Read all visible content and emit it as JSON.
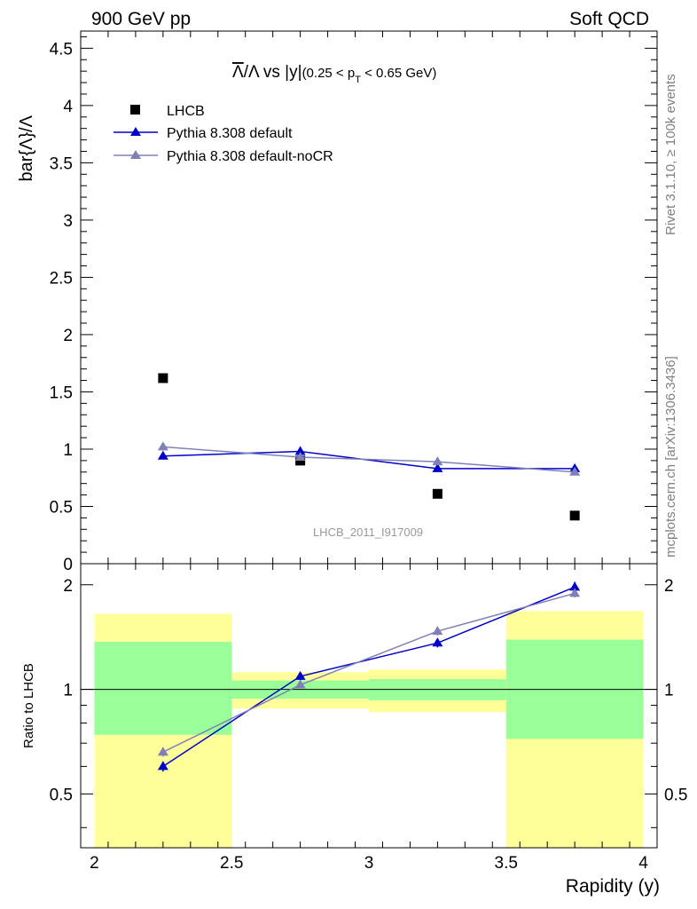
{
  "header": {
    "left": "900 GeV pp",
    "right": "Soft QCD"
  },
  "side_labels": {
    "rivet": "Rivet 3.1.10, ≥ 100k events",
    "mcplots": "mcplots.cern.ch [arXiv:1306.3436]"
  },
  "analysis_id": "LHCB_2011_I917009",
  "colors": {
    "data": "#000000",
    "pythia_default": "#0000cc",
    "pythia_nocr": "#8080b8",
    "band_inner": "#99ff99",
    "band_outer": "#ffff99"
  },
  "chart_data": [
    {
      "type": "scatter",
      "title": {
        "lambda_bar": "Λ",
        "middle": "/Λ vs |y|",
        "cut_open": "(0.25 < p",
        "cut_sub": "T",
        "cut_close": " < 0.65 GeV)"
      },
      "ylabel": "bar{Λ}/Λ",
      "ylim": [
        0,
        4.65
      ],
      "xlim": [
        1.95,
        4.05
      ],
      "yticks": [
        "0",
        "0.5",
        "1",
        "1.5",
        "2",
        "2.5",
        "3",
        "3.5",
        "4",
        "4.5"
      ],
      "legend_position": "top-left",
      "series": [
        {
          "name": "LHCB",
          "marker": "square",
          "x": [
            2.25,
            2.75,
            3.25,
            3.75
          ],
          "y": [
            1.62,
            0.9,
            0.61,
            0.42
          ],
          "err": [
            0.02,
            0.02,
            0.02,
            0.02
          ]
        },
        {
          "name": "Pythia 8.308 default",
          "marker": "triangle",
          "line": true,
          "x": [
            2.25,
            2.75,
            3.25,
            3.75
          ],
          "y": [
            0.94,
            0.98,
            0.83,
            0.83
          ],
          "err": [
            0.02,
            0.04,
            0.02,
            0.03
          ]
        },
        {
          "name": "Pythia 8.308 default-noCR",
          "marker": "triangle",
          "line": true,
          "x": [
            2.25,
            2.75,
            3.25,
            3.75
          ],
          "y": [
            1.02,
            0.93,
            0.89,
            0.8
          ],
          "err": [
            0.03,
            0.02,
            0.02,
            0.02
          ]
        }
      ]
    },
    {
      "type": "line",
      "ylabel": "Ratio to LHCB",
      "xlabel": "Rapidity (y)",
      "xlim": [
        1.95,
        4.05
      ],
      "ylim": [
        0.35,
        2.3
      ],
      "yscale": "log",
      "xticks": [
        "2",
        "2.5",
        "3",
        "3.5",
        "4"
      ],
      "yticks": [
        "0.5",
        "1",
        "2"
      ],
      "reference_line": 1,
      "bands": [
        {
          "x": [
            2.0,
            2.5
          ],
          "inner": [
            0.74,
            1.37
          ],
          "outer": [
            0.33,
            1.65
          ]
        },
        {
          "x": [
            2.5,
            3.0
          ],
          "inner": [
            0.94,
            1.06
          ],
          "outer": [
            0.88,
            1.12
          ]
        },
        {
          "x": [
            3.0,
            3.5
          ],
          "inner": [
            0.93,
            1.07
          ],
          "outer": [
            0.86,
            1.14
          ]
        },
        {
          "x": [
            3.5,
            4.0
          ],
          "inner": [
            0.72,
            1.39
          ],
          "outer": [
            0.33,
            1.68
          ]
        }
      ],
      "series": [
        {
          "name": "Pythia 8.308 default",
          "x": [
            2.25,
            2.75,
            3.25,
            3.75
          ],
          "y": [
            0.6,
            1.09,
            1.36,
            1.97
          ],
          "err": [
            0.02,
            0.03,
            0.04,
            0.07
          ]
        },
        {
          "name": "Pythia 8.308 default-noCR",
          "x": [
            2.25,
            2.75,
            3.25,
            3.75
          ],
          "y": [
            0.66,
            1.03,
            1.47,
            1.89
          ],
          "err": [
            0.02,
            0.02,
            0.04,
            0.05
          ]
        }
      ]
    }
  ]
}
